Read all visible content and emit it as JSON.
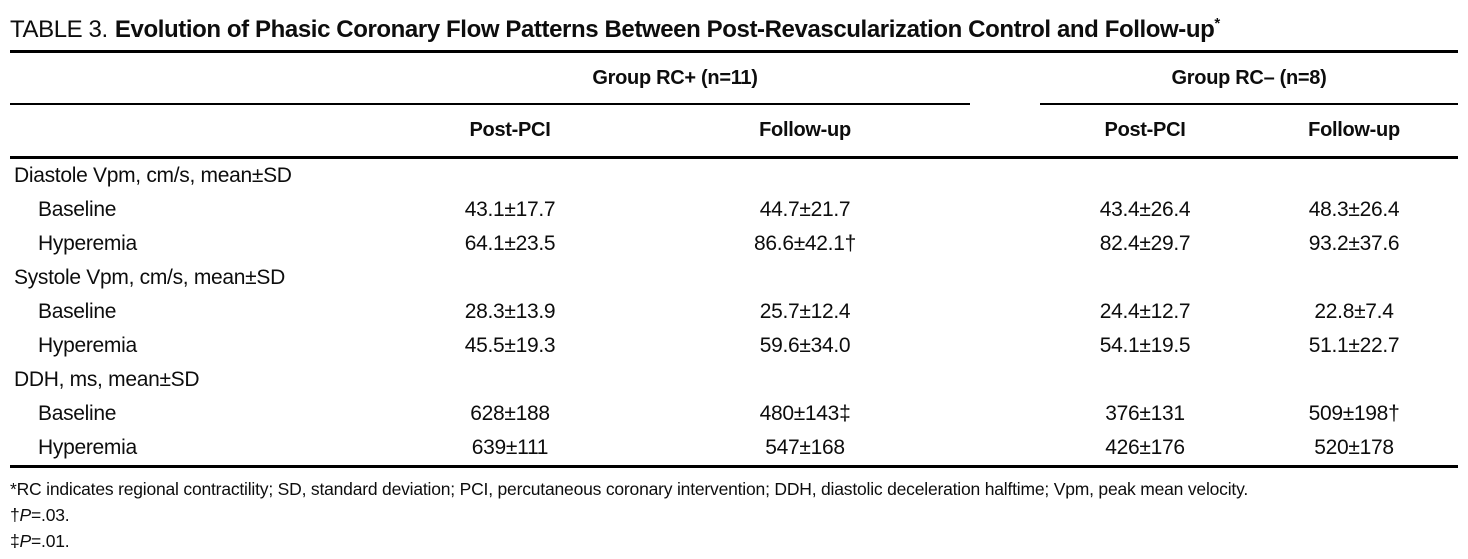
{
  "table": {
    "title_prefix": "TABLE 3.",
    "title": "Evolution of Phasic Coronary Flow Patterns Between Post-Revascularization Control and Follow-up",
    "title_marker": "*",
    "groups": [
      {
        "label": "Group RC+ (n=11)"
      },
      {
        "label": "Group RC– (n=8)"
      }
    ],
    "subheaders": [
      "Post-PCI",
      "Follow-up",
      "Post-PCI",
      "Follow-up"
    ],
    "rows": [
      {
        "type": "section",
        "label": "Diastole Vpm, cm/s, mean±SD",
        "values": [
          "",
          "",
          "",
          ""
        ]
      },
      {
        "type": "data",
        "label": "Baseline",
        "values": [
          "43.1±17.7",
          "44.7±21.7",
          "43.4±26.4",
          "48.3±26.4"
        ]
      },
      {
        "type": "data",
        "label": "Hyperemia",
        "values": [
          "64.1±23.5",
          "86.6±42.1†",
          "82.4±29.7",
          "93.2±37.6"
        ]
      },
      {
        "type": "section",
        "label": "Systole Vpm, cm/s, mean±SD",
        "values": [
          "",
          "",
          "",
          ""
        ]
      },
      {
        "type": "data",
        "label": "Baseline",
        "values": [
          "28.3±13.9",
          "25.7±12.4",
          "24.4±12.7",
          "22.8±7.4"
        ]
      },
      {
        "type": "data",
        "label": "Hyperemia",
        "values": [
          "45.5±19.3",
          "59.6±34.0",
          "54.1±19.5",
          "51.1±22.7"
        ]
      },
      {
        "type": "section",
        "label": "DDH, ms, mean±SD",
        "values": [
          "",
          "",
          "",
          ""
        ]
      },
      {
        "type": "data",
        "label": "Baseline",
        "values": [
          "628±188",
          "480±143‡",
          "376±131",
          "509±198†"
        ]
      },
      {
        "type": "data",
        "label": "Hyperemia",
        "values": [
          "639±111",
          "547±168",
          "426±176",
          "520±178"
        ]
      }
    ],
    "footnotes": {
      "abbrev": "*RC indicates regional contractility; SD, standard deviation; PCI, percutaneous coronary intervention; DDH, diastolic deceleration halftime; Vpm, peak mean velocity.",
      "fn2": {
        "marker": "†",
        "var": "P",
        "rest": "=.03."
      },
      "fn3": {
        "marker": "‡",
        "var": "P",
        "rest": "=.01."
      }
    }
  }
}
